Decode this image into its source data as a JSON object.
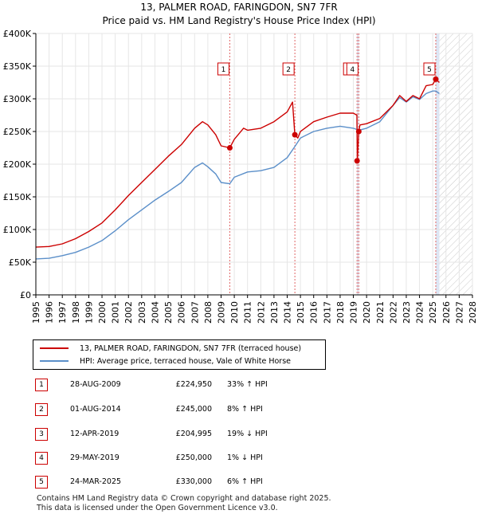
{
  "header": {
    "title": "13, PALMER ROAD, FARINGDON, SN7 7FR",
    "subtitle": "Price paid vs. HM Land Registry's House Price Index (HPI)"
  },
  "legend": {
    "property_label": "13, PALMER ROAD, FARINGDON, SN7 7FR (terraced house)",
    "hpi_label": "HPI: Average price, terraced house, Vale of White Horse"
  },
  "transactions": [
    {
      "num": "1",
      "date": "28-AUG-2009",
      "price": "£224,950",
      "hpi": "33% ↑ HPI"
    },
    {
      "num": "2",
      "date": "01-AUG-2014",
      "price": "£245,000",
      "hpi": "8% ↑ HPI"
    },
    {
      "num": "3",
      "date": "12-APR-2019",
      "price": "£204,995",
      "hpi": "19% ↓ HPI"
    },
    {
      "num": "4",
      "date": "29-MAY-2019",
      "price": "£250,000",
      "hpi": "1% ↓ HPI"
    },
    {
      "num": "5",
      "date": "24-MAR-2025",
      "price": "£330,000",
      "hpi": "6% ↑ HPI"
    }
  ],
  "footer": {
    "line1": "Contains HM Land Registry data © Crown copyright and database right 2025.",
    "line2": "This data is licensed under the Open Government Licence v3.0."
  },
  "colors": {
    "property": "#cc0000",
    "hpi": "#5b8fc9",
    "marker_line": "#e06666",
    "band": "#dde6f4"
  },
  "chart_data": {
    "type": "line",
    "title": "13, PALMER ROAD, FARINGDON, SN7 7FR",
    "subtitle": "Price paid vs. HM Land Registry's House Price Index (HPI)",
    "xlabel": "",
    "ylabel": "",
    "xlim": [
      1995,
      2028
    ],
    "ylim": [
      0,
      400000
    ],
    "x_ticks": [
      "1995",
      "1996",
      "1997",
      "1998",
      "1999",
      "2000",
      "2001",
      "2002",
      "2003",
      "2004",
      "2005",
      "2006",
      "2007",
      "2008",
      "2009",
      "2010",
      "2011",
      "2012",
      "2013",
      "2014",
      "2015",
      "2016",
      "2017",
      "2018",
      "2019",
      "2020",
      "2021",
      "2022",
      "2023",
      "2024",
      "2025",
      "2026",
      "2027",
      "2028"
    ],
    "y_ticks": [
      {
        "value": 0,
        "label": "£0"
      },
      {
        "value": 50000,
        "label": "£50K"
      },
      {
        "value": 100000,
        "label": "£100K"
      },
      {
        "value": 150000,
        "label": "£150K"
      },
      {
        "value": 200000,
        "label": "£200K"
      },
      {
        "value": 250000,
        "label": "£250K"
      },
      {
        "value": 300000,
        "label": "£300K"
      },
      {
        "value": 350000,
        "label": "£350K"
      },
      {
        "value": 400000,
        "label": "£400K"
      }
    ],
    "grid": true,
    "forecast_start": 2025.5,
    "series": [
      {
        "name": "13, PALMER ROAD, FARINGDON, SN7 7FR (terraced house)",
        "x": [
          1995,
          1996,
          1997,
          1998,
          1999,
          2000,
          2001,
          2002,
          2003,
          2004,
          2005,
          2006,
          2007,
          2007.6,
          2008,
          2008.6,
          2009,
          2009.66,
          2010,
          2010.7,
          2011,
          2012,
          2013,
          2014,
          2014.4,
          2014.58,
          2014.8,
          2015,
          2016,
          2017,
          2018,
          2019,
          2019.27,
          2019.3,
          2019.41,
          2019.5,
          2020,
          2021,
          2022,
          2022.5,
          2023,
          2023.5,
          2024,
          2024.5,
          2025,
          2025.23,
          2025.5
        ],
        "values": [
          73000,
          74000,
          78000,
          86000,
          97000,
          110000,
          130000,
          152000,
          172000,
          192000,
          212000,
          230000,
          255000,
          265000,
          260000,
          245000,
          228000,
          224950,
          238000,
          255000,
          252000,
          255000,
          265000,
          280000,
          295000,
          245000,
          240000,
          250000,
          265000,
          272000,
          278000,
          278000,
          275000,
          204995,
          250000,
          260000,
          262000,
          270000,
          290000,
          305000,
          296000,
          305000,
          300000,
          320000,
          322000,
          330000,
          325000
        ]
      },
      {
        "name": "HPI: Average price, terraced house, Vale of White Horse",
        "x": [
          1995,
          1996,
          1997,
          1998,
          1999,
          2000,
          2001,
          2002,
          2003,
          2004,
          2005,
          2006,
          2007,
          2007.6,
          2008,
          2008.6,
          2009,
          2009.66,
          2010,
          2011,
          2012,
          2013,
          2014,
          2014.58,
          2015,
          2016,
          2017,
          2018,
          2019,
          2019.41,
          2020,
          2021,
          2022,
          2022.5,
          2023,
          2023.5,
          2024,
          2024.5,
          2025,
          2025.23,
          2025.5
        ],
        "values": [
          55000,
          56000,
          60000,
          65000,
          73000,
          83000,
          98000,
          115000,
          130000,
          145000,
          158000,
          172000,
          195000,
          202000,
          196000,
          185000,
          172000,
          170000,
          180000,
          188000,
          190000,
          195000,
          210000,
          227000,
          240000,
          250000,
          255000,
          258000,
          255000,
          252000,
          255000,
          265000,
          290000,
          302000,
          295000,
          303000,
          299000,
          308000,
          312000,
          312000,
          308000
        ]
      }
    ],
    "transactions": [
      {
        "label": "1",
        "x": 2009.66,
        "value": 224950
      },
      {
        "label": "2",
        "x": 2014.58,
        "value": 245000
      },
      {
        "label": "3",
        "x": 2019.28,
        "value": 204995
      },
      {
        "label": "4",
        "x": 2019.41,
        "value": 250000
      },
      {
        "label": "5",
        "x": 2025.23,
        "value": 330000
      }
    ]
  }
}
